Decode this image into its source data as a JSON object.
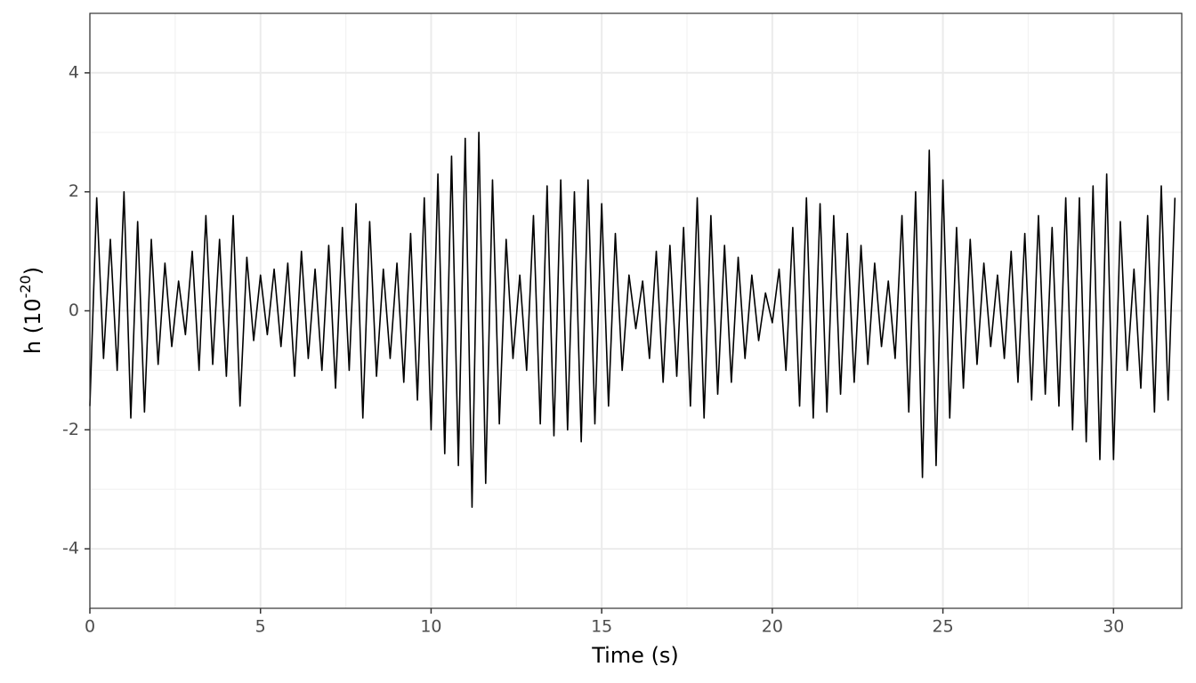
{
  "chart_data": {
    "type": "line",
    "xlabel": "Time (s)",
    "ylabel": [
      "h (10",
      "-20",
      ")"
    ],
    "color": "#000000",
    "xlim": [
      0,
      32
    ],
    "xticks": [
      0,
      5,
      10,
      15,
      20,
      25,
      30
    ],
    "ylim": [
      -5,
      5
    ],
    "yticks": [
      -4,
      -2,
      0,
      2,
      4
    ],
    "grid": true,
    "x": [
      0,
      0.2,
      0.4,
      0.6,
      0.8,
      1,
      1.2,
      1.4,
      1.6,
      1.8,
      2,
      2.2,
      2.4,
      2.6,
      2.8,
      3,
      3.2,
      3.4,
      3.6,
      3.8,
      4,
      4.2,
      4.4,
      4.6,
      4.8,
      5,
      5.2,
      5.4,
      5.6,
      5.8,
      6,
      6.2,
      6.4,
      6.6,
      6.8,
      7,
      7.2,
      7.4,
      7.6,
      7.8,
      8,
      8.2,
      8.4,
      8.6,
      8.8,
      9,
      9.2,
      9.4,
      9.6,
      9.8,
      10,
      10.2,
      10.4,
      10.6,
      10.8,
      11,
      11.2,
      11.4,
      11.6,
      11.8,
      12,
      12.2,
      12.4,
      12.6,
      12.8,
      13,
      13.2,
      13.4,
      13.6,
      13.8,
      14,
      14.2,
      14.4,
      14.6,
      14.8,
      15,
      15.2,
      15.4,
      15.6,
      15.8,
      16,
      16.2,
      16.4,
      16.6,
      16.8,
      17,
      17.2,
      17.4,
      17.6,
      17.8,
      18,
      18.2,
      18.4,
      18.6,
      18.8,
      19,
      19.2,
      19.4,
      19.6,
      19.8,
      20,
      20.2,
      20.4,
      20.6,
      20.8,
      21,
      21.2,
      21.4,
      21.6,
      21.8,
      22,
      22.2,
      22.4,
      22.6,
      22.8,
      23,
      23.2,
      23.4,
      23.6,
      23.8,
      24,
      24.2,
      24.4,
      24.6,
      24.8,
      25,
      25.2,
      25.4,
      25.6,
      25.8,
      26,
      26.2,
      26.4,
      26.6,
      26.8,
      27,
      27.2,
      27.4,
      27.6,
      27.8,
      28,
      28.2,
      28.4,
      28.6,
      28.8,
      29,
      29.2,
      29.4,
      29.6,
      29.8,
      30,
      30.2,
      30.4,
      30.6,
      30.8,
      31,
      31.2,
      31.4,
      31.6,
      31.8
    ],
    "values": [
      -1.6,
      1.9,
      -0.8,
      1.2,
      -1.0,
      2.0,
      -1.8,
      1.5,
      -1.7,
      1.2,
      -0.9,
      0.8,
      -0.6,
      0.5,
      -0.4,
      1.0,
      -1.0,
      1.6,
      -0.9,
      1.2,
      -1.1,
      1.6,
      -1.6,
      0.9,
      -0.5,
      0.6,
      -0.4,
      0.7,
      -0.6,
      0.8,
      -1.1,
      1.0,
      -0.8,
      0.7,
      -1.0,
      1.1,
      -1.3,
      1.4,
      -1.0,
      1.8,
      -1.8,
      1.5,
      -1.1,
      0.7,
      -0.8,
      0.8,
      -1.2,
      1.3,
      -1.5,
      1.9,
      -2.0,
      2.3,
      -2.4,
      2.6,
      -2.6,
      2.9,
      -3.3,
      3.0,
      -2.9,
      2.2,
      -1.9,
      1.2,
      -0.8,
      0.6,
      -1.0,
      1.6,
      -1.9,
      2.1,
      -2.1,
      2.2,
      -2.0,
      2.0,
      -2.2,
      2.2,
      -1.9,
      1.8,
      -1.6,
      1.3,
      -1.0,
      0.6,
      -0.3,
      0.5,
      -0.8,
      1.0,
      -1.2,
      1.1,
      -1.1,
      1.4,
      -1.6,
      1.9,
      -1.8,
      1.6,
      -1.4,
      1.1,
      -1.2,
      0.9,
      -0.8,
      0.6,
      -0.5,
      0.3,
      -0.2,
      0.7,
      -1.0,
      1.4,
      -1.6,
      1.9,
      -1.8,
      1.8,
      -1.7,
      1.6,
      -1.4,
      1.3,
      -1.2,
      1.1,
      -0.9,
      0.8,
      -0.6,
      0.5,
      -0.8,
      1.6,
      -1.7,
      2.0,
      -2.8,
      2.7,
      -2.6,
      2.2,
      -1.8,
      1.4,
      -1.3,
      1.2,
      -0.9,
      0.8,
      -0.6,
      0.6,
      -0.8,
      1.0,
      -1.2,
      1.3,
      -1.5,
      1.6,
      -1.4,
      1.4,
      -1.6,
      1.9,
      -2.0,
      1.9,
      -2.2,
      2.1,
      -2.5,
      2.3,
      -2.5,
      1.5,
      -1.0,
      0.7,
      -1.3,
      1.6,
      -1.7,
      2.1,
      -1.5,
      1.9
    ]
  }
}
